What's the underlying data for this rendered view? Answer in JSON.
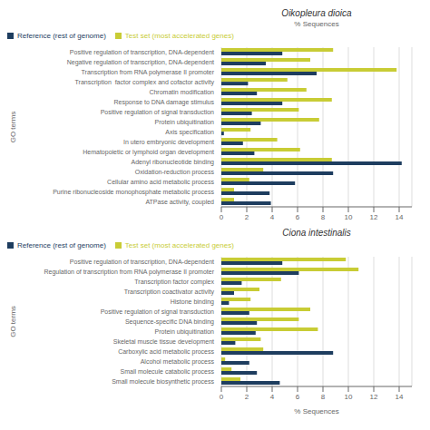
{
  "chart_data": [
    {
      "type": "bar",
      "orientation": "horizontal",
      "title": "Oikopleura dioica",
      "categories": [
        "Positive regulation of transcription, DNA-dependent",
        "Negative regulation of transcription, DNA-dependent",
        "Transcription from RNA polymerase II promoter",
        "Transcription  factor complex and cofactor activity",
        "Chromatin modification",
        "Response to DNA damage stimulus",
        "Positive regulation of signal transduction",
        "Protein ubiquitination",
        "Axis specification",
        "In utero embryonic development",
        "Hematopoietic or lymphoid organ development",
        "Adenyl ribonucleotide binding",
        "Oxidation-reduction process",
        "Cellular amino acid metabolic process",
        "Purine ribonucleoside monophosphate metabolic process",
        "ATPase activity, coupled"
      ],
      "series": [
        {
          "name": "Test set (most accelerated genes)",
          "color": "#c8cc35",
          "values": [
            8.8,
            7.0,
            13.8,
            5.2,
            6.7,
            8.7,
            6.1,
            7.7,
            2.3,
            4.4,
            6.2,
            8.7,
            3.3,
            2.2,
            1.0,
            1.0
          ]
        },
        {
          "name": "Reference (rest of genome)",
          "color": "#1e3d5f",
          "values": [
            4.8,
            3.5,
            7.5,
            2.1,
            2.8,
            4.8,
            2.4,
            3.1,
            0.2,
            1.7,
            2.6,
            14.2,
            8.8,
            5.8,
            3.8,
            3.9
          ]
        }
      ],
      "xlabel": "% Sequences",
      "ylabel": "GO terms",
      "xlim": [
        0,
        15
      ],
      "xticks": [
        0,
        2,
        4,
        6,
        8,
        10,
        12,
        14
      ],
      "grid": true,
      "legend": "upper left"
    },
    {
      "type": "bar",
      "orientation": "horizontal",
      "title": "Ciona intestinalis",
      "categories": [
        "Positive regulation of transcription, DNA-dependent",
        "Regulation of transcription from RNA polymerase II promoter",
        "Transcription factor complex",
        "Transcription coactivator activity",
        "Histone binding",
        "Positive regulation of signal transduction",
        "Sequence-specific DNA binding",
        "Protein ubiquitination",
        "Skeletal muscle tissue development",
        "Carboxylic acid metabolic process",
        "Alcohol metabolic process",
        "Small molecule catabolic process",
        "Small molecule biosynthetic process"
      ],
      "series": [
        {
          "name": "Test set (most accelerated genes)",
          "color": "#c8cc35",
          "values": [
            9.8,
            10.8,
            4.7,
            3.0,
            2.3,
            7.0,
            6.1,
            7.6,
            3.1,
            3.3,
            0.3,
            0.8,
            1.5
          ]
        },
        {
          "name": "Reference (rest of genome)",
          "color": "#1e3d5f",
          "values": [
            4.8,
            6.1,
            1.6,
            1.0,
            0.6,
            2.2,
            2.8,
            2.7,
            1.1,
            8.8,
            2.2,
            2.8,
            4.6
          ]
        }
      ],
      "xlabel": "% Sequences",
      "ylabel": "GO terms",
      "xlim": [
        0,
        15
      ],
      "xticks": [
        0,
        2,
        4,
        6,
        8,
        10,
        12,
        14
      ],
      "grid": true,
      "legend": "upper left"
    }
  ]
}
